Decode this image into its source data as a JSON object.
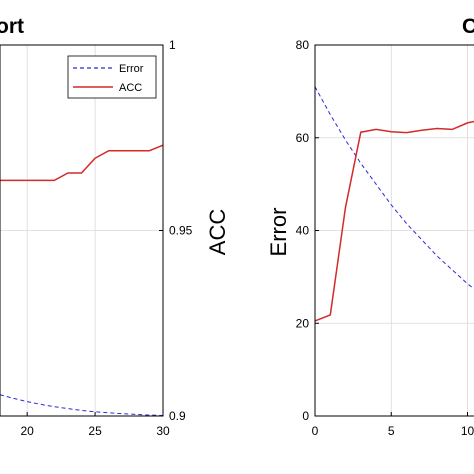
{
  "chart_data": [
    {
      "type": "line",
      "title": "ort",
      "xlabel": "",
      "ylabel": "",
      "y2label": "ACC",
      "xlim": [
        18,
        30
      ],
      "ylim": [
        0,
        80
      ],
      "y2lim": [
        0.9,
        1.0
      ],
      "x_ticks": [
        20,
        25,
        30
      ],
      "x_tick_labels": [
        "20",
        "25",
        "30"
      ],
      "y2_ticks": [
        0.9,
        0.95,
        1.0
      ],
      "y2_tick_labels": [
        "0.9",
        "0.95",
        "1"
      ],
      "grid": true,
      "legend": {
        "placement": "top-right",
        "entries": [
          "Error",
          "ACC"
        ]
      },
      "series": [
        {
          "name": "Error",
          "axis": "left",
          "style": "dashed",
          "color": "#2b2bd6",
          "x": [
            18,
            19,
            20,
            21,
            22,
            23,
            24,
            25,
            26,
            27,
            28,
            29,
            30
          ],
          "y": [
            4.6,
            3.8,
            3.1,
            2.5,
            2.0,
            1.6,
            1.2,
            0.9,
            0.7,
            0.5,
            0.35,
            0.2,
            0.1
          ]
        },
        {
          "name": "ACC",
          "axis": "right",
          "style": "solid",
          "color": "#d42a2a",
          "x": [
            18,
            19,
            20,
            21,
            22,
            23,
            24,
            25,
            26,
            27,
            28,
            29,
            30
          ],
          "y": [
            0.9635,
            0.9635,
            0.9635,
            0.9635,
            0.9635,
            0.9655,
            0.9655,
            0.9695,
            0.9715,
            0.9715,
            0.9715,
            0.9715,
            0.973
          ]
        }
      ]
    },
    {
      "type": "line",
      "title": "C",
      "xlabel": "",
      "ylabel": "Error",
      "xlim": [
        0,
        12
      ],
      "ylim": [
        0,
        80
      ],
      "x_ticks": [
        0,
        5,
        10
      ],
      "x_tick_labels": [
        "0",
        "5",
        "10"
      ],
      "y_ticks": [
        0,
        20,
        40,
        60,
        80
      ],
      "y_tick_labels": [
        "0",
        "20",
        "40",
        "60",
        "80"
      ],
      "grid": true,
      "series": [
        {
          "name": "Error",
          "style": "dashed",
          "color": "#2b2bd6",
          "x": [
            0,
            1,
            2,
            3,
            4,
            5,
            6,
            7,
            8,
            9,
            10,
            11,
            12
          ],
          "y": [
            71,
            65,
            59.5,
            54.5,
            50,
            45.5,
            41.5,
            38,
            34.5,
            31.5,
            28.5,
            26,
            23.5
          ]
        },
        {
          "name": "ACC",
          "style": "solid",
          "color": "#d42a2a",
          "x": [
            0,
            1,
            2,
            3,
            4,
            5,
            6,
            7,
            8,
            9,
            10,
            11
          ],
          "y": [
            20.5,
            21.8,
            45,
            61.2,
            61.8,
            61.3,
            61.1,
            61.6,
            62,
            61.8,
            63.2,
            63.9
          ]
        }
      ]
    }
  ]
}
